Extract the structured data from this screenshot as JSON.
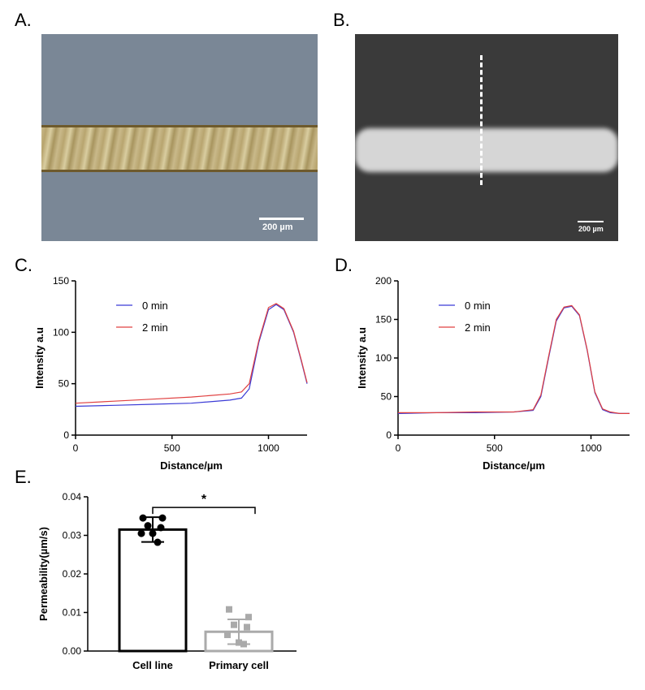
{
  "panels": {
    "A": {
      "letter": "A.",
      "scalebar_label": "200 µm"
    },
    "B": {
      "letter": "B.",
      "scalebar_label": "200 µm"
    },
    "C": {
      "letter": "C."
    },
    "D": {
      "letter": "D."
    },
    "E": {
      "letter": "E."
    }
  },
  "colors": {
    "series_0min": "#3b3bd6",
    "series_2min": "#e04040",
    "cell_line": "#000000",
    "primary_cell": "#aaaaaa"
  },
  "chart_data": [
    {
      "id": "C",
      "type": "line",
      "xlabel": "Distance/µm",
      "ylabel": "Intensity a.u",
      "xlim": [
        0,
        1200
      ],
      "ylim": [
        0,
        150
      ],
      "xticks": [
        0,
        500,
        1000
      ],
      "yticks": [
        0,
        50,
        100,
        150
      ],
      "legend_position": "top-left",
      "series": [
        {
          "name": "0 min",
          "x": [
            0,
            200,
            400,
            600,
            800,
            860,
            900,
            950,
            1000,
            1040,
            1080,
            1130,
            1170,
            1200
          ],
          "y": [
            28,
            29,
            30,
            31,
            34,
            36,
            45,
            90,
            122,
            127,
            122,
            100,
            72,
            50
          ]
        },
        {
          "name": "2 min",
          "x": [
            0,
            200,
            400,
            600,
            800,
            860,
            900,
            950,
            1000,
            1040,
            1080,
            1130,
            1170,
            1200
          ],
          "y": [
            31,
            33,
            35,
            37,
            40,
            42,
            50,
            92,
            124,
            128,
            123,
            101,
            73,
            51
          ]
        }
      ]
    },
    {
      "id": "D",
      "type": "line",
      "xlabel": "Distance/µm",
      "ylabel": "Intensity a.u",
      "xlim": [
        0,
        1200
      ],
      "ylim": [
        0,
        200
      ],
      "xticks": [
        0,
        500,
        1000
      ],
      "yticks": [
        0,
        50,
        100,
        150,
        200
      ],
      "legend_position": "top-left",
      "series": [
        {
          "name": "0 min",
          "x": [
            0,
            200,
            400,
            600,
            700,
            740,
            780,
            820,
            860,
            900,
            940,
            980,
            1020,
            1060,
            1100,
            1150,
            1200
          ],
          "y": [
            28,
            29,
            29,
            30,
            32,
            50,
            100,
            148,
            165,
            167,
            155,
            110,
            55,
            33,
            29,
            28,
            28
          ]
        },
        {
          "name": "2 min",
          "x": [
            0,
            200,
            400,
            600,
            700,
            740,
            780,
            820,
            860,
            900,
            940,
            980,
            1020,
            1060,
            1100,
            1150,
            1200
          ],
          "y": [
            29,
            29,
            30,
            30,
            33,
            52,
            102,
            150,
            166,
            168,
            156,
            111,
            56,
            34,
            30,
            28,
            28
          ]
        }
      ]
    },
    {
      "id": "E",
      "type": "bar",
      "ylabel": "Permeability(µm/s)",
      "ylim": [
        0,
        0.04
      ],
      "yticks": [
        "0.00",
        "0.01",
        "0.02",
        "0.03",
        "0.04"
      ],
      "categories": [
        "Cell line",
        "Primary cell"
      ],
      "values": [
        0.0315,
        0.005
      ],
      "errors": [
        0.0032,
        0.0032
      ],
      "points": [
        [
          0.0345,
          0.0345,
          0.0325,
          0.032,
          0.0305,
          0.0305,
          0.0282
        ],
        [
          0.0108,
          0.0088,
          0.0068,
          0.0062,
          0.0042,
          0.0022,
          0.0018
        ]
      ],
      "significance": "*"
    }
  ]
}
